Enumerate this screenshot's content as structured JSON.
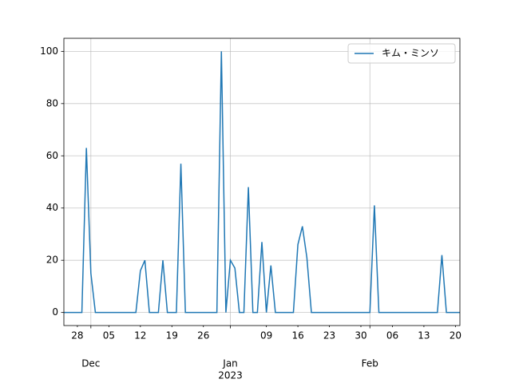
{
  "chart_data": {
    "type": "line",
    "x": [
      "2022-11-25",
      "2022-11-26",
      "2022-11-27",
      "2022-11-28",
      "2022-11-29",
      "2022-11-30",
      "2022-12-01",
      "2022-12-02",
      "2022-12-03",
      "2022-12-04",
      "2022-12-05",
      "2022-12-06",
      "2022-12-07",
      "2022-12-08",
      "2022-12-09",
      "2022-12-10",
      "2022-12-11",
      "2022-12-12",
      "2022-12-13",
      "2022-12-14",
      "2022-12-15",
      "2022-12-16",
      "2022-12-17",
      "2022-12-18",
      "2022-12-19",
      "2022-12-20",
      "2022-12-21",
      "2022-12-22",
      "2022-12-23",
      "2022-12-24",
      "2022-12-25",
      "2022-12-26",
      "2022-12-27",
      "2022-12-28",
      "2022-12-29",
      "2022-12-30",
      "2022-12-31",
      "2023-01-01",
      "2023-01-02",
      "2023-01-03",
      "2023-01-04",
      "2023-01-05",
      "2023-01-06",
      "2023-01-07",
      "2023-01-08",
      "2023-01-09",
      "2023-01-10",
      "2023-01-11",
      "2023-01-12",
      "2023-01-13",
      "2023-01-14",
      "2023-01-15",
      "2023-01-16",
      "2023-01-17",
      "2023-01-18",
      "2023-01-19",
      "2023-01-20",
      "2023-01-21",
      "2023-01-22",
      "2023-01-23",
      "2023-01-24",
      "2023-01-25",
      "2023-01-26",
      "2023-01-27",
      "2023-01-28",
      "2023-01-29",
      "2023-01-30",
      "2023-01-31",
      "2023-02-01",
      "2023-02-02",
      "2023-02-03",
      "2023-02-04",
      "2023-02-05",
      "2023-02-06",
      "2023-02-07",
      "2023-02-08",
      "2023-02-09",
      "2023-02-10",
      "2023-02-11",
      "2023-02-12",
      "2023-02-13",
      "2023-02-14",
      "2023-02-15",
      "2023-02-16",
      "2023-02-17",
      "2023-02-18",
      "2023-02-19",
      "2023-02-20",
      "2023-02-21"
    ],
    "series": [
      {
        "name": "キム・ミンソ",
        "color": "#1f77b4",
        "values": [
          0,
          0,
          0,
          0,
          0,
          63,
          15,
          0,
          0,
          0,
          0,
          0,
          0,
          0,
          0,
          0,
          0,
          16,
          20,
          0,
          0,
          0,
          20,
          0,
          0,
          0,
          57,
          0,
          0,
          0,
          0,
          0,
          0,
          0,
          0,
          100,
          0,
          20,
          17,
          0,
          0,
          48,
          0,
          0,
          27,
          0,
          18,
          0,
          0,
          0,
          0,
          0,
          26,
          33,
          21,
          0,
          0,
          0,
          0,
          0,
          0,
          0,
          0,
          0,
          0,
          0,
          0,
          0,
          0,
          41,
          0,
          0,
          0,
          0,
          0,
          0,
          0,
          0,
          0,
          0,
          0,
          0,
          0,
          0,
          22,
          0,
          0,
          0,
          0
        ]
      }
    ],
    "xlim": [
      "2022-11-25",
      "2023-02-21"
    ],
    "xticks": [
      {
        "value": "2022-12-01",
        "label": "Dec"
      },
      {
        "value": "2023-01-01",
        "label": "Jan"
      },
      {
        "value": "2023-02-01",
        "label": "Feb"
      }
    ],
    "x_minor_ticks": [
      {
        "value": "2022-11-28",
        "label": "28"
      },
      {
        "value": "2022-12-05",
        "label": "05"
      },
      {
        "value": "2022-12-12",
        "label": "12"
      },
      {
        "value": "2022-12-19",
        "label": "19"
      },
      {
        "value": "2022-12-26",
        "label": "26"
      },
      {
        "value": "2023-01-09",
        "label": "09"
      },
      {
        "value": "2023-01-16",
        "label": "16"
      },
      {
        "value": "2023-01-23",
        "label": "23"
      },
      {
        "value": "2023-01-30",
        "label": "30"
      },
      {
        "value": "2023-02-06",
        "label": "06"
      },
      {
        "value": "2023-02-13",
        "label": "13"
      },
      {
        "value": "2023-02-20",
        "label": "20"
      }
    ],
    "x_offset_label": "2023",
    "ylim": [
      -5,
      105
    ],
    "yticks": [
      0,
      20,
      40,
      60,
      80,
      100
    ],
    "grid": true,
    "legend": "upper right"
  }
}
